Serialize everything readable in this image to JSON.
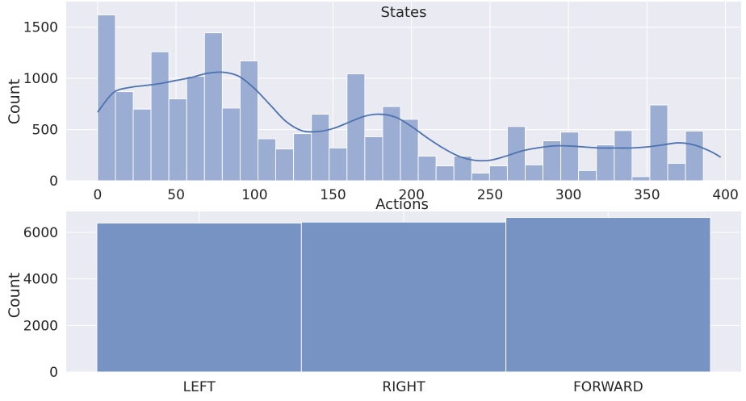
{
  "chart_data": [
    {
      "type": "bar",
      "subtype": "histogram-with-kde",
      "title": "States",
      "xlabel": "",
      "ylabel": "Count",
      "xlim": [
        -20,
        410
      ],
      "ylim": [
        0,
        1750
      ],
      "xticks": [
        0,
        50,
        100,
        150,
        200,
        250,
        300,
        350,
        400
      ],
      "yticks": [
        0,
        500,
        1000,
        1500
      ],
      "bin_width": 11.35,
      "bin_start": 0,
      "values": [
        1620,
        870,
        700,
        1260,
        800,
        1020,
        1445,
        710,
        1170,
        410,
        310,
        460,
        650,
        320,
        1045,
        430,
        725,
        600,
        240,
        145,
        240,
        75,
        145,
        530,
        155,
        390,
        475,
        100,
        350,
        490,
        40,
        740,
        170,
        485
      ],
      "kde": {
        "x": [
          0,
          10,
          20,
          30,
          40,
          50,
          60,
          70,
          80,
          90,
          100,
          110,
          120,
          130,
          140,
          150,
          160,
          170,
          180,
          190,
          200,
          210,
          220,
          230,
          240,
          250,
          260,
          270,
          280,
          290,
          300,
          310,
          320,
          330,
          340,
          350,
          360,
          370,
          380,
          390,
          397
        ],
        "y": [
          670,
          860,
          910,
          930,
          950,
          980,
          1010,
          1050,
          1060,
          1020,
          900,
          740,
          580,
          490,
          480,
          510,
          570,
          630,
          650,
          620,
          530,
          420,
          320,
          240,
          200,
          200,
          240,
          290,
          320,
          340,
          340,
          330,
          320,
          320,
          320,
          330,
          350,
          370,
          350,
          290,
          230
        ]
      },
      "colors": {
        "bar": "#9badd2",
        "line": "#4c72b0",
        "background": "#eaeaf2",
        "grid": "#ffffff"
      }
    },
    {
      "type": "bar",
      "subtype": "histogram",
      "title": "Actions",
      "xlabel": "",
      "ylabel": "Count",
      "ylim": [
        0,
        6900
      ],
      "yticks": [
        0,
        2000,
        4000,
        6000
      ],
      "categories": [
        "LEFT",
        "RIGHT",
        "FORWARD"
      ],
      "values": [
        6400,
        6440,
        6640
      ],
      "colors": {
        "bar": "#7793c3",
        "background": "#eaeaf2",
        "grid": "#ffffff"
      }
    }
  ]
}
